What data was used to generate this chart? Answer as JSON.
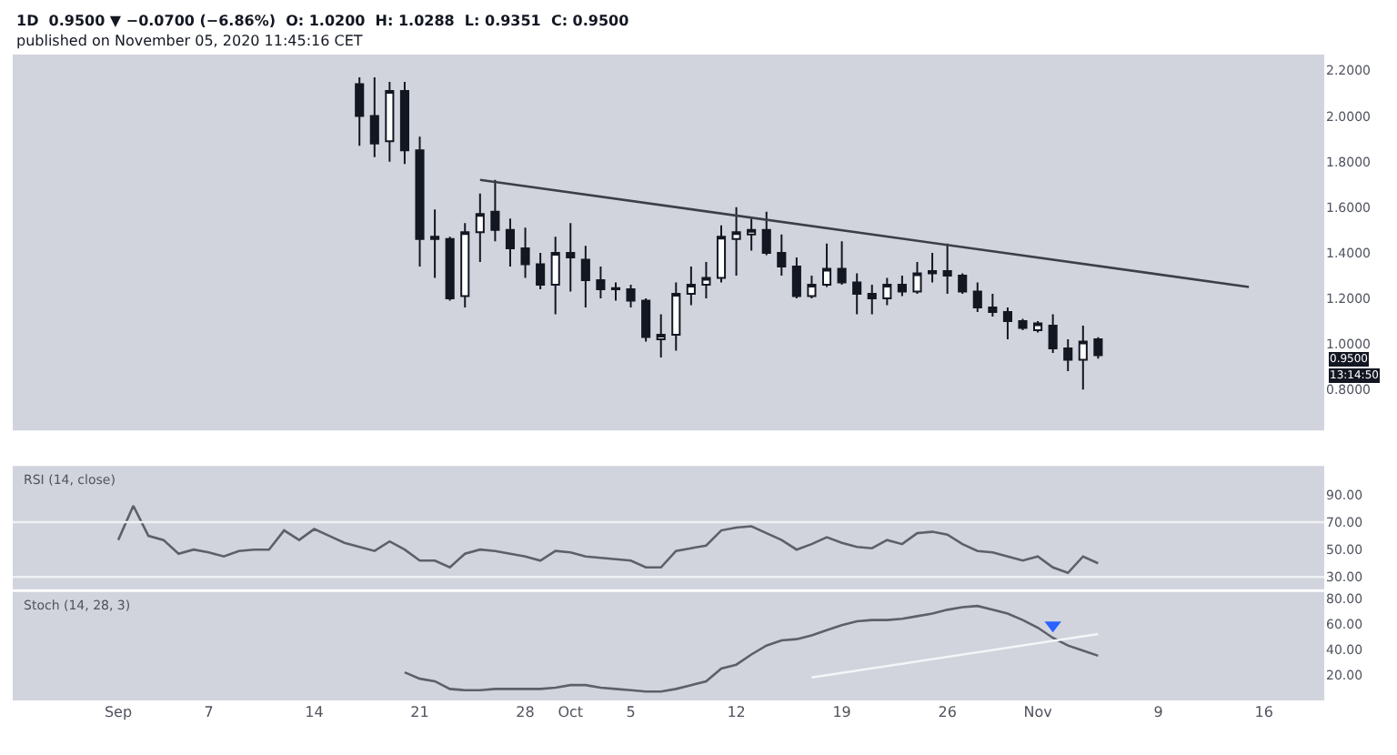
{
  "chart_data": [
    {
      "type": "candlestick",
      "title": "1D  0.9500 ▼ −0.0700 (−6.86%)  O: 1.0200  H: 1.0288  L: 0.9351  C: 0.9500",
      "subtitle": "published on November 05, 2020 11:45:16 CET",
      "x": [
        "2020-09-17",
        "2020-09-18",
        "2020-09-19",
        "2020-09-20",
        "2020-09-21",
        "2020-09-22",
        "2020-09-23",
        "2020-09-24",
        "2020-09-25",
        "2020-09-26",
        "2020-09-27",
        "2020-09-28",
        "2020-09-29",
        "2020-09-30",
        "2020-10-01",
        "2020-10-02",
        "2020-10-03",
        "2020-10-04",
        "2020-10-05",
        "2020-10-06",
        "2020-10-07",
        "2020-10-08",
        "2020-10-09",
        "2020-10-10",
        "2020-10-11",
        "2020-10-12",
        "2020-10-13",
        "2020-10-14",
        "2020-10-15",
        "2020-10-16",
        "2020-10-17",
        "2020-10-18",
        "2020-10-19",
        "2020-10-20",
        "2020-10-21",
        "2020-10-22",
        "2020-10-23",
        "2020-10-24",
        "2020-10-25",
        "2020-10-26",
        "2020-10-27",
        "2020-10-28",
        "2020-10-29",
        "2020-10-30",
        "2020-10-31",
        "2020-11-01",
        "2020-11-02",
        "2020-11-03",
        "2020-11-04",
        "2020-11-05"
      ],
      "ohlc": [
        [
          2.14,
          2.17,
          1.87,
          2.0
        ],
        [
          2.0,
          2.17,
          1.82,
          1.88
        ],
        [
          1.89,
          2.15,
          1.8,
          2.11
        ],
        [
          2.11,
          2.15,
          1.79,
          1.85
        ],
        [
          1.85,
          1.91,
          1.34,
          1.46
        ],
        [
          1.47,
          1.59,
          1.29,
          1.46
        ],
        [
          1.46,
          1.47,
          1.19,
          1.2
        ],
        [
          1.21,
          1.53,
          1.16,
          1.49
        ],
        [
          1.49,
          1.66,
          1.36,
          1.57
        ],
        [
          1.58,
          1.72,
          1.45,
          1.5
        ],
        [
          1.5,
          1.55,
          1.34,
          1.42
        ],
        [
          1.42,
          1.51,
          1.29,
          1.35
        ],
        [
          1.35,
          1.4,
          1.24,
          1.26
        ],
        [
          1.26,
          1.47,
          1.13,
          1.4
        ],
        [
          1.4,
          1.53,
          1.23,
          1.38
        ],
        [
          1.37,
          1.43,
          1.16,
          1.28
        ],
        [
          1.28,
          1.34,
          1.2,
          1.24
        ],
        [
          1.245,
          1.27,
          1.19,
          1.24
        ],
        [
          1.24,
          1.26,
          1.16,
          1.19
        ],
        [
          1.19,
          1.2,
          1.01,
          1.03
        ],
        [
          1.02,
          1.13,
          0.94,
          1.04
        ],
        [
          1.04,
          1.27,
          0.97,
          1.22
        ],
        [
          1.22,
          1.34,
          1.17,
          1.26
        ],
        [
          1.26,
          1.36,
          1.2,
          1.29
        ],
        [
          1.29,
          1.52,
          1.27,
          1.47
        ],
        [
          1.46,
          1.6,
          1.3,
          1.49
        ],
        [
          1.48,
          1.55,
          1.41,
          1.5
        ],
        [
          1.5,
          1.58,
          1.39,
          1.4
        ],
        [
          1.4,
          1.48,
          1.3,
          1.34
        ],
        [
          1.34,
          1.38,
          1.2,
          1.21
        ],
        [
          1.21,
          1.3,
          1.2,
          1.26
        ],
        [
          1.26,
          1.44,
          1.25,
          1.33
        ],
        [
          1.33,
          1.45,
          1.26,
          1.27
        ],
        [
          1.27,
          1.31,
          1.13,
          1.22
        ],
        [
          1.22,
          1.26,
          1.13,
          1.2
        ],
        [
          1.2,
          1.29,
          1.17,
          1.26
        ],
        [
          1.26,
          1.3,
          1.21,
          1.23
        ],
        [
          1.23,
          1.36,
          1.22,
          1.31
        ],
        [
          1.31,
          1.4,
          1.27,
          1.32
        ],
        [
          1.32,
          1.44,
          1.22,
          1.3
        ],
        [
          1.3,
          1.31,
          1.22,
          1.23
        ],
        [
          1.23,
          1.27,
          1.14,
          1.16
        ],
        [
          1.16,
          1.22,
          1.12,
          1.14
        ],
        [
          1.14,
          1.16,
          1.02,
          1.1
        ],
        [
          1.1,
          1.11,
          1.06,
          1.07
        ],
        [
          1.06,
          1.1,
          1.05,
          1.09
        ],
        [
          1.08,
          1.13,
          0.96,
          0.98
        ],
        [
          0.98,
          1.02,
          0.88,
          0.93
        ],
        [
          0.93,
          1.08,
          0.8,
          1.01
        ],
        [
          1.02,
          1.0288,
          0.9351,
          0.95
        ]
      ],
      "series": [
        {
          "type": "line",
          "x": [
            "2020-09-25",
            "2020-11-15"
          ],
          "values": [
            1.72,
            1.25
          ],
          "color": "#3c3f47"
        }
      ],
      "annotations": [
        "0.9500",
        "13:14:50"
      ],
      "xlim": [
        "2020-08-25",
        "2020-11-20"
      ],
      "ylim": [
        0.62,
        2.27
      ],
      "yticks": [
        {
          "value": 0.8,
          "label": "0.8000"
        },
        {
          "value": 1.0,
          "label": "1.0000"
        },
        {
          "value": 1.2,
          "label": "1.2000"
        },
        {
          "value": 1.4,
          "label": "1.4000"
        },
        {
          "value": 1.6,
          "label": "1.6000"
        },
        {
          "value": 1.8,
          "label": "1.8000"
        },
        {
          "value": 2.0,
          "label": "2.0000"
        },
        {
          "value": 2.2,
          "label": "2.2000"
        }
      ],
      "tick_labels": "y",
      "grid": false
    },
    {
      "type": "line",
      "title": "RSI (14, close)",
      "x": [
        "2020-09-01",
        "2020-09-02",
        "2020-09-03",
        "2020-09-04",
        "2020-09-05",
        "2020-09-06",
        "2020-09-07",
        "2020-09-08",
        "2020-09-09",
        "2020-09-10",
        "2020-09-11",
        "2020-09-12",
        "2020-09-13",
        "2020-09-14",
        "2020-09-15",
        "2020-09-16",
        "2020-09-17",
        "2020-09-18",
        "2020-09-19",
        "2020-09-20",
        "2020-09-21",
        "2020-09-22",
        "2020-09-23",
        "2020-09-24",
        "2020-09-25",
        "2020-09-26",
        "2020-09-27",
        "2020-09-28",
        "2020-09-29",
        "2020-09-30",
        "2020-10-01",
        "2020-10-02",
        "2020-10-03",
        "2020-10-04",
        "2020-10-05",
        "2020-10-06",
        "2020-10-07",
        "2020-10-08",
        "2020-10-09",
        "2020-10-10",
        "2020-10-11",
        "2020-10-12",
        "2020-10-13",
        "2020-10-14",
        "2020-10-15",
        "2020-10-16",
        "2020-10-17",
        "2020-10-18",
        "2020-10-19",
        "2020-10-20",
        "2020-10-21",
        "2020-10-22",
        "2020-10-23",
        "2020-10-24",
        "2020-10-25",
        "2020-10-26",
        "2020-10-27",
        "2020-10-28",
        "2020-10-29",
        "2020-10-30",
        "2020-10-31",
        "2020-11-01",
        "2020-11-02",
        "2020-11-03",
        "2020-11-04",
        "2020-11-05"
      ],
      "series": [
        {
          "color": "#5d606b",
          "values": [
            57,
            82,
            60,
            57,
            47,
            50,
            48,
            45,
            49,
            50,
            50,
            64,
            57,
            65,
            60,
            55,
            52,
            49,
            56,
            50,
            42,
            42,
            37,
            47,
            50,
            49,
            47,
            45,
            42,
            49,
            48,
            45,
            44,
            43,
            42,
            37,
            37,
            49,
            51,
            53,
            64,
            66,
            67,
            62,
            57,
            50,
            54,
            59,
            55,
            52,
            51,
            57,
            54,
            62,
            63,
            61,
            54,
            49,
            48,
            45,
            42,
            45,
            37,
            33,
            45,
            40
          ]
        }
      ],
      "ref_lines": [
        {
          "axis": "y",
          "value": 70,
          "color": "#eef0f4"
        },
        {
          "axis": "y",
          "value": 30,
          "color": "#eef0f4"
        }
      ],
      "xlim": [
        "2020-08-25",
        "2020-11-20"
      ],
      "ylim": [
        21,
        111
      ],
      "yticks": [
        {
          "value": 30,
          "label": "30.00"
        },
        {
          "value": 50,
          "label": "50.00"
        },
        {
          "value": 70,
          "label": "70.00"
        },
        {
          "value": 90,
          "label": "90.00"
        }
      ],
      "tick_labels": "y",
      "grid": false,
      "marker": "none",
      "line_style": "solid"
    },
    {
      "type": "line",
      "title": "Stoch (14, 28, 3)",
      "x": [
        "2020-09-20",
        "2020-09-21",
        "2020-09-22",
        "2020-09-23",
        "2020-09-24",
        "2020-09-25",
        "2020-09-26",
        "2020-09-27",
        "2020-09-28",
        "2020-09-29",
        "2020-09-30",
        "2020-10-01",
        "2020-10-02",
        "2020-10-03",
        "2020-10-04",
        "2020-10-05",
        "2020-10-06",
        "2020-10-07",
        "2020-10-08",
        "2020-10-09",
        "2020-10-10",
        "2020-10-11",
        "2020-10-12",
        "2020-10-13",
        "2020-10-14",
        "2020-10-15",
        "2020-10-16",
        "2020-10-17",
        "2020-10-18",
        "2020-10-19",
        "2020-10-20",
        "2020-10-21",
        "2020-10-22",
        "2020-10-23",
        "2020-10-24",
        "2020-10-25",
        "2020-10-26",
        "2020-10-27",
        "2020-10-28",
        "2020-10-29",
        "2020-10-30",
        "2020-10-31",
        "2020-11-01",
        "2020-11-02",
        "2020-11-03",
        "2020-11-04",
        "2020-11-05"
      ],
      "series": [
        {
          "color": "#5d606b",
          "values": [
            22,
            17,
            15,
            9,
            8,
            8,
            9,
            9,
            9,
            9,
            10,
            12,
            12,
            10,
            9,
            8,
            7,
            7,
            9,
            12,
            15,
            25,
            28,
            36,
            43,
            47,
            48,
            51,
            55,
            59,
            62,
            63,
            63,
            64,
            66,
            68,
            71,
            73,
            74,
            71,
            68,
            63,
            57,
            49,
            43,
            39,
            35
          ]
        },
        {
          "color": "#f4f5f8",
          "x": [
            "2020-10-17",
            "2020-11-05"
          ],
          "values": [
            18,
            52
          ]
        },
        {
          "type": "scatter",
          "color": "#2962ff",
          "x": [
            "2020-11-02"
          ],
          "values": [
            59
          ],
          "marker": "triangle"
        }
      ],
      "xlim": [
        "2020-08-25",
        "2020-11-20"
      ],
      "xticks": [
        {
          "value": "2020-09-01",
          "label": "Sep"
        },
        {
          "value": "2020-09-07",
          "label": "7"
        },
        {
          "value": "2020-09-14",
          "label": "14"
        },
        {
          "value": "2020-09-21",
          "label": "21"
        },
        {
          "value": "2020-09-28",
          "label": "28"
        },
        {
          "value": "2020-10-01",
          "label": "Oct"
        },
        {
          "value": "2020-10-05",
          "label": "5"
        },
        {
          "value": "2020-10-12",
          "label": "12"
        },
        {
          "value": "2020-10-19",
          "label": "19"
        },
        {
          "value": "2020-10-26",
          "label": "26"
        },
        {
          "value": "2020-11-01",
          "label": "Nov"
        },
        {
          "value": "2020-11-09",
          "label": "9"
        },
        {
          "value": "2020-11-16",
          "label": "16"
        }
      ],
      "ylim": [
        0,
        85
      ],
      "yticks": [
        {
          "value": 20,
          "label": "20.00"
        },
        {
          "value": 40,
          "label": "40.00"
        },
        {
          "value": 60,
          "label": "60.00"
        },
        {
          "value": 80,
          "label": "80.00"
        }
      ],
      "grid": false,
      "marker": "none",
      "line_style": "solid"
    }
  ]
}
